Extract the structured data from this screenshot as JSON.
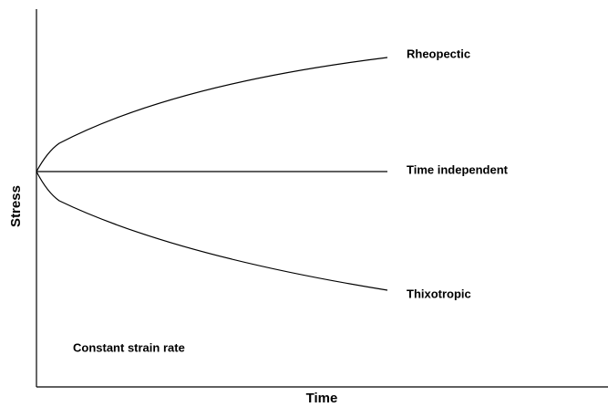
{
  "y_axis_label": "Stress",
  "x_axis_label": "Time",
  "curves": [
    {
      "label": "Rheopectic"
    },
    {
      "label": "Time independent"
    },
    {
      "label": "Thixotropic"
    }
  ],
  "note": "Constant strain rate"
}
